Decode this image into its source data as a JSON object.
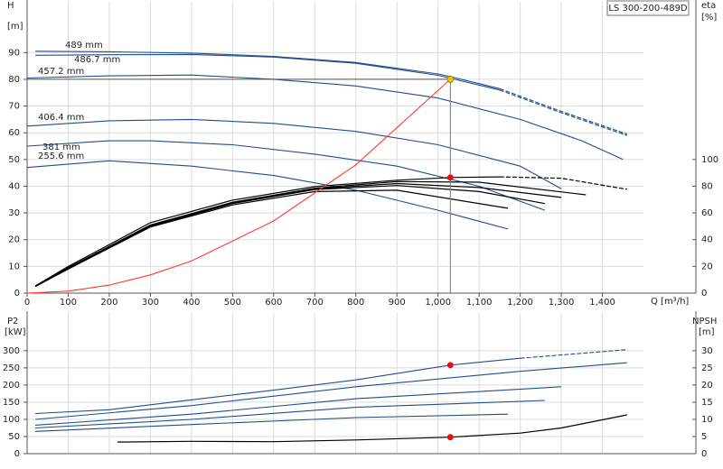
{
  "chart_data": [
    {
      "type": "line",
      "title": "LS 300-200-489D",
      "ylabel": "H",
      "yunit": "[m]",
      "y2label": "eta",
      "y2unit": "[%]",
      "xlabel": "Q [m³/h]",
      "xlim": [
        0,
        1500
      ],
      "ylim": [
        0,
        109
      ],
      "y2lim": [
        0,
        218
      ],
      "grid": true,
      "xticks": [
        0,
        100,
        200,
        300,
        400,
        500,
        600,
        700,
        800,
        900,
        {
          "value": 1000,
          "label": "1,000"
        },
        {
          "value": 1100,
          "label": "1,100"
        },
        {
          "value": 1200,
          "label": "1,200"
        },
        {
          "value": 1300,
          "label": "1,300"
        },
        {
          "value": 1400,
          "label": "1,400"
        }
      ],
      "yticks": [
        0,
        10,
        20,
        30,
        40,
        50,
        60,
        70,
        80,
        90
      ],
      "y2ticks": [
        0,
        20,
        40,
        60,
        80,
        100
      ],
      "series": [
        {
          "name": "489 mm",
          "color": "#1f4e8c",
          "x": [
            20,
            200,
            400,
            600,
            800,
            1000,
            1030,
            1150
          ],
          "values": [
            90.5,
            90.3,
            89.8,
            88.6,
            86.3,
            82,
            81,
            76.5
          ]
        },
        {
          "color": "#1f4e8c",
          "dash": true,
          "x": [
            1150,
            1300,
            1460
          ],
          "values": [
            76.5,
            68,
            59.5
          ]
        },
        {
          "name": "486.7 mm",
          "color": "#1f4e8c",
          "x": [
            20,
            200,
            400,
            600,
            800,
            1000,
            1150
          ],
          "values": [
            89,
            89.2,
            89.3,
            88.3,
            86,
            81.5,
            76
          ]
        },
        {
          "color": "#1f4e8c",
          "dash": true,
          "x": [
            1150,
            1300,
            1460
          ],
          "values": [
            76,
            67.5,
            59
          ]
        },
        {
          "name": "457.2 mm",
          "color": "#1f4e8c",
          "x": [
            0,
            200,
            400,
            600,
            800,
            1000,
            1200,
            1350,
            1450
          ],
          "values": [
            80.5,
            81.3,
            81.6,
            80,
            77.5,
            73,
            65,
            57,
            50
          ]
        },
        {
          "name": "406.4 mm",
          "color": "#1f4e8c",
          "x": [
            0,
            200,
            400,
            600,
            800,
            1000,
            1200,
            1300
          ],
          "values": [
            62.5,
            64.5,
            65,
            63.5,
            60.5,
            55.5,
            47.5,
            39
          ]
        },
        {
          "name": "381 mm",
          "color": "#1f4e8c",
          "x": [
            0,
            200,
            300,
            500,
            700,
            900,
            1100,
            1260
          ],
          "values": [
            55,
            57,
            57,
            55.5,
            52,
            47.5,
            40,
            31
          ]
        },
        {
          "name": "255.6 mm",
          "color": "#1f4e8c",
          "x": [
            0,
            200,
            400,
            600,
            800,
            1000,
            1170
          ],
          "values": [
            47,
            49.5,
            47.5,
            44,
            38.5,
            31,
            24
          ]
        },
        {
          "color": "#000000",
          "axis": "y2",
          "x": [
            20,
            100,
            300,
            500,
            700,
            900,
            1030,
            1150
          ],
          "values": [
            5.4,
            20,
            52.7,
            69.6,
            79.7,
            84.5,
            86.5,
            87
          ]
        },
        {
          "color": "#000000",
          "axis": "y2",
          "dash": true,
          "x": [
            1150,
            1300,
            1460
          ],
          "values": [
            87,
            86,
            77.7
          ]
        },
        {
          "color": "#000000",
          "axis": "y2",
          "x": [
            20,
            100,
            300,
            500,
            700,
            900,
            1100,
            1360
          ],
          "values": [
            5,
            19,
            51,
            68,
            78.5,
            83.5,
            83,
            73.6
          ]
        },
        {
          "color": "#000000",
          "axis": "y2",
          "x": [
            20,
            100,
            300,
            500,
            700,
            900,
            1100,
            1300
          ],
          "values": [
            5,
            19,
            50.5,
            67.5,
            78,
            82,
            79,
            71.6
          ]
        },
        {
          "color": "#000000",
          "axis": "y2",
          "x": [
            20,
            100,
            300,
            500,
            700,
            900,
            1100,
            1260
          ],
          "values": [
            5,
            18.5,
            50,
            67,
            77.5,
            80.5,
            76,
            67
          ]
        },
        {
          "color": "#000000",
          "axis": "y2",
          "x": [
            20,
            100,
            300,
            500,
            700,
            900,
            1170
          ],
          "values": [
            5,
            18,
            49.5,
            66,
            76,
            77,
            63.5
          ]
        },
        {
          "color": "#ff3b2f",
          "x": [
            0,
            100,
            200,
            300,
            400,
            600,
            800,
            1030
          ],
          "values": [
            0,
            0.75,
            3,
            6.8,
            12,
            27,
            48,
            80
          ]
        }
      ],
      "duty_point": {
        "x": 1030,
        "y": 80,
        "y2": 86.5,
        "color": "#f5c400",
        "color2": "#e8100e"
      }
    },
    {
      "type": "line",
      "ylabel": "P2",
      "yunit": "[kW]",
      "y2label": "NPSH",
      "y2unit": "[m]",
      "xlim": [
        0,
        1500
      ],
      "ylim": [
        0,
        410
      ],
      "y2lim": [
        0,
        41
      ],
      "grid": true,
      "yticks": [
        0,
        50,
        100,
        150,
        200,
        250,
        300
      ],
      "y2ticks": [
        0,
        5,
        10,
        15,
        20,
        25,
        30
      ],
      "series": [
        {
          "color": "#1f4e8c",
          "x": [
            20,
            200,
            400,
            600,
            800,
            1030,
            1200
          ],
          "values": [
            117,
            128,
            157,
            185,
            215,
            258,
            278
          ]
        },
        {
          "color": "#1f4e8c",
          "dash": true,
          "x": [
            1200,
            1460
          ],
          "values": [
            278,
            303
          ]
        },
        {
          "color": "#1f4e8c",
          "x": [
            20,
            400,
            800,
            1200,
            1460
          ],
          "values": [
            100,
            140,
            195,
            240,
            265
          ]
        },
        {
          "color": "#1f4e8c",
          "x": [
            20,
            400,
            800,
            1300
          ],
          "values": [
            83,
            115,
            160,
            195
          ]
        },
        {
          "color": "#1f4e8c",
          "x": [
            20,
            400,
            800,
            1260
          ],
          "values": [
            75,
            100,
            135,
            155
          ]
        },
        {
          "color": "#1f4e8c",
          "x": [
            20,
            400,
            800,
            1170
          ],
          "values": [
            65,
            85,
            105,
            115
          ]
        },
        {
          "color": "#000000",
          "axis": "y2",
          "x": [
            220,
            400,
            600,
            800,
            1030,
            1200,
            1300,
            1460
          ],
          "values": [
            3.4,
            3.6,
            3.5,
            4,
            4.8,
            6,
            7.5,
            11.3
          ]
        }
      ],
      "duty_point": {
        "x": 1030,
        "y": 258,
        "y2": 4.8,
        "color": "#e8100e",
        "color2": "#e8100e"
      }
    }
  ]
}
